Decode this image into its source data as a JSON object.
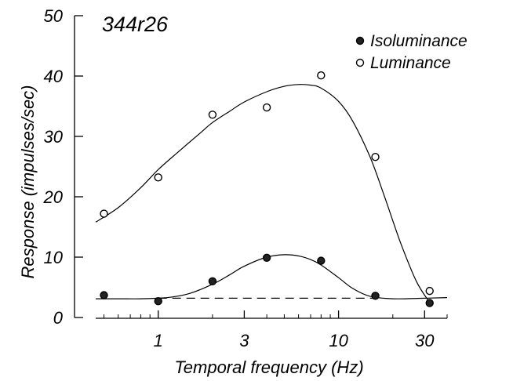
{
  "chart_data": {
    "type": "scatter",
    "title": "344r26",
    "xlabel": "Temporal frequency (Hz)",
    "ylabel": "Response (impulses/sec)",
    "x_scale": "log",
    "xlim": [
      0.45,
      40
    ],
    "ylim": [
      0,
      50
    ],
    "x_ticks": [
      1,
      3,
      10,
      30
    ],
    "x_tick_labels": [
      "1",
      "3",
      "10",
      "30"
    ],
    "y_ticks": [
      0,
      10,
      20,
      30,
      40,
      50
    ],
    "y_tick_labels": [
      "0",
      "10",
      "20",
      "30",
      "40",
      "50"
    ],
    "grid": false,
    "legend_position": "top-right",
    "series": [
      {
        "name": "Isoluminance",
        "marker": "filled-circle",
        "x": [
          0.5,
          1,
          2,
          4,
          8,
          16,
          32
        ],
        "y": [
          3.7,
          2.7,
          6.0,
          9.9,
          9.4,
          3.6,
          2.4
        ],
        "fit": {
          "x": [
            0.45,
            0.6,
            0.8,
            1,
            1.2,
            1.5,
            2,
            2.5,
            3,
            4,
            5,
            6,
            7,
            8,
            10,
            12,
            15,
            20,
            30,
            40
          ],
          "y": [
            3.1,
            3.1,
            3.1,
            3.2,
            3.4,
            4.0,
            5.5,
            7.1,
            8.5,
            10.0,
            10.4,
            10.2,
            9.6,
            8.7,
            6.6,
            4.8,
            3.5,
            3.1,
            3.2,
            3.3
          ]
        }
      },
      {
        "name": "Luminance",
        "marker": "open-circle",
        "x": [
          0.5,
          1,
          2,
          4,
          8,
          16,
          32
        ],
        "y": [
          17.2,
          23.2,
          33.6,
          34.8,
          40.1,
          26.6,
          4.4
        ],
        "fit": {
          "x": [
            0.45,
            0.6,
            0.8,
            1,
            1.3,
            1.7,
            2,
            2.5,
            3,
            4,
            5,
            6,
            7,
            8,
            10,
            12,
            15,
            18,
            22,
            27,
            32
          ],
          "y": [
            15.8,
            18.2,
            21.5,
            24.5,
            27.5,
            30.5,
            32.3,
            34.2,
            35.7,
            37.4,
            38.3,
            38.6,
            38.5,
            38.0,
            35.8,
            32.5,
            26.5,
            20.0,
            12.5,
            6.0,
            2.5
          ]
        }
      }
    ],
    "baseline": {
      "style": "dashed",
      "y": 3.2,
      "x_range": [
        1,
        16
      ]
    }
  }
}
